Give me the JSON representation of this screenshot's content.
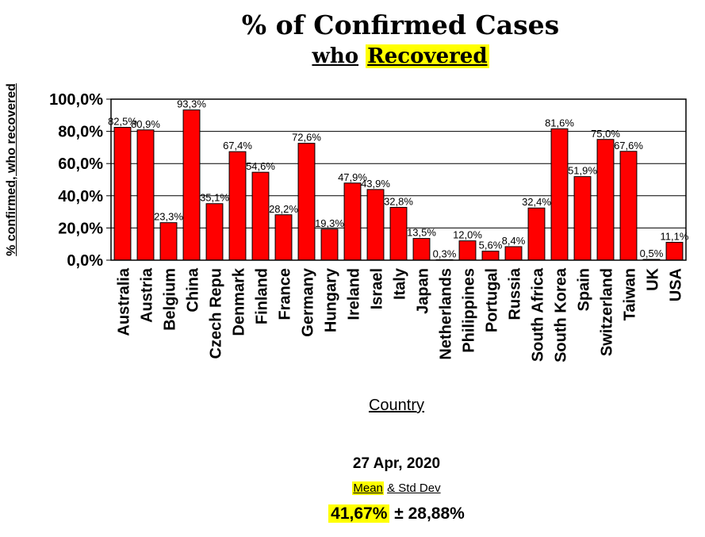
{
  "title": "% of Confirmed Cases",
  "subtitle_part1": "who",
  "subtitle_part2": "Recovered",
  "date": "27 Apr, 2020",
  "stats": {
    "mean_label": "Mean",
    "rest_label": "& Std Dev",
    "mean_value": "41,67%",
    "std_value": "± 28,88%"
  },
  "colors": {
    "bar": "#ff0000",
    "highlight": "#ffff00"
  },
  "chart_data": {
    "type": "bar",
    "title": "% of Confirmed Cases who Recovered",
    "xlabel": "Country",
    "ylabel": "% confirmed, who recovered",
    "ylim": [
      0,
      100
    ],
    "yticks": [
      "0,0%",
      "20,0%",
      "40,0%",
      "60,0%",
      "80,0%",
      "100,0%"
    ],
    "grid": true,
    "categories": [
      "Australia",
      "Austria",
      "Belgium",
      "China",
      "Czech Repu",
      "Denmark",
      "Finland",
      "France",
      "Germany",
      "Hungary",
      "Ireland",
      "Israel",
      "Italy",
      "Japan",
      "Netherlands",
      "Philippines",
      "Portugal",
      "Russia",
      "South Africa",
      "South Korea",
      "Spain",
      "Switzerland",
      "Taiwan",
      "UK",
      "USA"
    ],
    "values": [
      82.5,
      80.9,
      23.3,
      93.3,
      35.1,
      67.4,
      54.6,
      28.2,
      72.6,
      19.3,
      47.9,
      43.9,
      32.8,
      13.5,
      0.3,
      12.0,
      5.6,
      8.4,
      32.4,
      81.6,
      51.9,
      75.0,
      67.6,
      0.5,
      11.1
    ],
    "data_labels": [
      "82,5%",
      "80,9%",
      "23,3%",
      "93,3%",
      "35,1%",
      "67,4%",
      "54,6%",
      "28,2%",
      "72,6%",
      "19,3%",
      "47,9%",
      "43,9%",
      "32,8%",
      "13,5%",
      "0,3%",
      "12,0%",
      "5,6%",
      "8,4%",
      "32,4%",
      "81,6%",
      "51,9%",
      "75,0%",
      "67,6%",
      "0,5%",
      "11,1%"
    ]
  }
}
